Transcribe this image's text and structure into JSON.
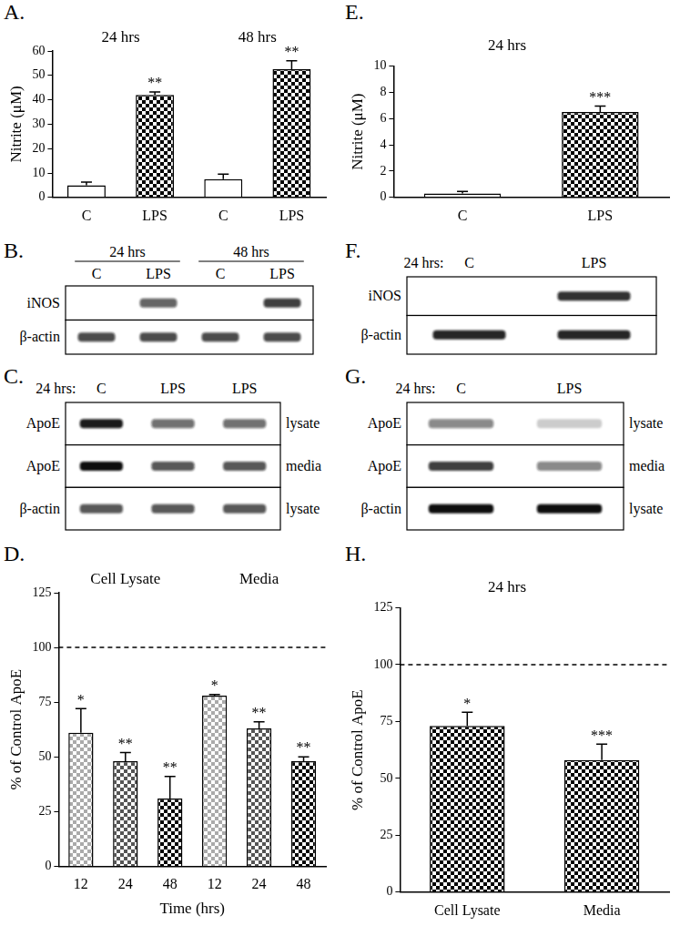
{
  "chart_data": [
    {
      "panel": "A.",
      "type": "bar",
      "groups": [
        {
          "label": "24 hrs",
          "span": 2
        },
        {
          "label": "48 hrs",
          "span": 2
        }
      ],
      "categories": [
        "C",
        "LPS",
        "C",
        "LPS"
      ],
      "values": [
        5,
        42,
        7.5,
        52.5
      ],
      "errors": [
        1.3,
        1.2,
        2,
        3.5
      ],
      "significance": [
        null,
        "**",
        null,
        "**"
      ],
      "colors": [
        "#ffffff",
        "#000000",
        "#ffffff",
        "#000000"
      ],
      "y_label": "Nitrite (μM)",
      "ylim": [
        0,
        60
      ],
      "yticks": [
        0,
        10,
        20,
        30,
        40,
        50,
        60
      ],
      "grid": false
    },
    {
      "panel": "E.",
      "type": "bar",
      "title": "24 hrs",
      "categories": [
        "C",
        "LPS"
      ],
      "values": [
        0.3,
        6.5
      ],
      "errors": [
        0.15,
        0.45
      ],
      "significance": [
        null,
        "***"
      ],
      "colors": [
        "#ffffff",
        "#000000"
      ],
      "y_label": "Nitrite (μM)",
      "ylim": [
        0,
        10
      ],
      "yticks": [
        0,
        2,
        4,
        6,
        8,
        10
      ],
      "grid": false
    },
    {
      "panel": "D.",
      "type": "bar",
      "groups": [
        {
          "label": "Cell Lysate",
          "span": 3
        },
        {
          "label": "Media",
          "span": 3
        }
      ],
      "categories": [
        "12",
        "24",
        "48",
        "12",
        "24",
        "48"
      ],
      "values": [
        61,
        48,
        31,
        78,
        63,
        48
      ],
      "errors": [
        11,
        4,
        10,
        0.5,
        3,
        2
      ],
      "significance": [
        "*",
        "**",
        "**",
        "*",
        "**",
        "**"
      ],
      "colors": [
        "#aaaaaa",
        "#555555",
        "#000000",
        "#aaaaaa",
        "#555555",
        "#000000"
      ],
      "x_label": "Time (hrs)",
      "y_label": "% of Control ApoE",
      "ylim": [
        0,
        125
      ],
      "yticks": [
        0,
        25,
        50,
        75,
        100,
        125
      ],
      "reference_line": 100,
      "grid": false
    },
    {
      "panel": "H.",
      "type": "bar",
      "title": "24 hrs",
      "categories": [
        "Cell Lysate",
        "Media"
      ],
      "values": [
        73,
        58
      ],
      "errors": [
        6,
        7
      ],
      "significance": [
        "*",
        "***"
      ],
      "colors": [
        "#000000",
        "#000000"
      ],
      "y_label": "% of Control ApoE",
      "ylim": [
        0,
        125
      ],
      "yticks": [
        0,
        25,
        50,
        75,
        100,
        125
      ],
      "reference_line": 100,
      "grid": false
    }
  ],
  "blots": [
    {
      "panel": "B.",
      "lane_groups": [
        {
          "label": "24 hrs",
          "span": 2
        },
        {
          "label": "48 hrs",
          "span": 2
        }
      ],
      "lanes": [
        "C",
        "LPS",
        "C",
        "LPS"
      ],
      "rows": [
        {
          "label": "iNOS",
          "bands": [
            0,
            0.65,
            0,
            0.8
          ]
        },
        {
          "label": "β-actin",
          "bands": [
            0.75,
            0.75,
            0.75,
            0.75
          ]
        }
      ]
    },
    {
      "panel": "C.",
      "header": "24 hrs:",
      "lanes": [
        "C",
        "LPS",
        "LPS"
      ],
      "rows": [
        {
          "label": "ApoE",
          "side_label": "lysate",
          "bands": [
            0.95,
            0.6,
            0.6
          ]
        },
        {
          "label": "ApoE",
          "side_label": "media",
          "bands": [
            1,
            0.7,
            0.7
          ]
        },
        {
          "label": "β-actin",
          "side_label": "lysate",
          "bands": [
            0.7,
            0.7,
            0.7
          ]
        }
      ]
    },
    {
      "panel": "F.",
      "header": "24 hrs:",
      "lanes": [
        "C",
        "LPS"
      ],
      "rows": [
        {
          "label": "iNOS",
          "bands": [
            0,
            0.85
          ]
        },
        {
          "label": "β-actin",
          "bands": [
            0.9,
            0.9
          ]
        }
      ]
    },
    {
      "panel": "G.",
      "header": "24 hrs:",
      "lanes": [
        "C",
        "LPS"
      ],
      "rows": [
        {
          "label": "ApoE",
          "side_label": "lysate",
          "bands": [
            0.5,
            0.2
          ]
        },
        {
          "label": "ApoE",
          "side_label": "media",
          "bands": [
            0.8,
            0.5
          ]
        },
        {
          "label": "β-actin",
          "side_label": "lysate",
          "bands": [
            1,
            1
          ]
        }
      ]
    }
  ]
}
